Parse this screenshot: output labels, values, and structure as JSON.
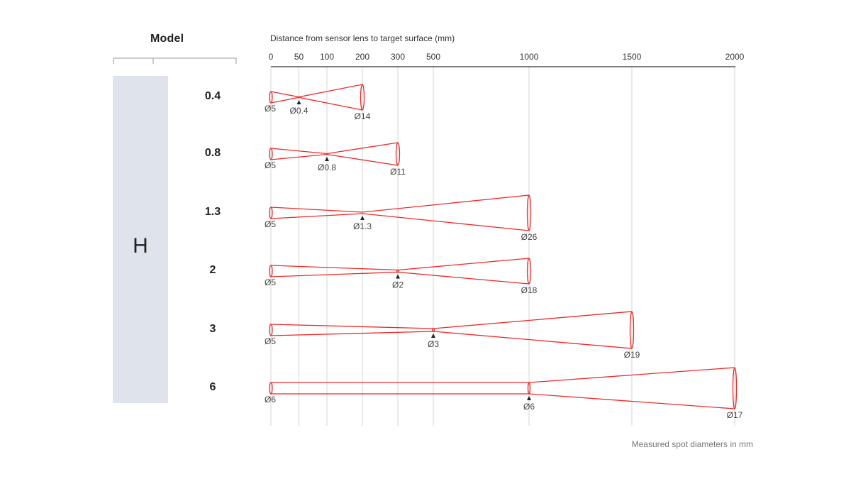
{
  "header": {
    "model_label": "Model"
  },
  "series": {
    "letter": "H",
    "color": "#dfe3eb"
  },
  "chart_data": {
    "type": "diagram",
    "title": "",
    "axis": {
      "label": "Distance from sensor lens to target surface (mm)",
      "ticks": [
        0,
        50,
        100,
        200,
        300,
        500,
        1000,
        1500,
        2000
      ],
      "grid": true
    },
    "beam_color": "#ee2a2a",
    "models": [
      {
        "name": "0.4",
        "start_diameter": "Ø5",
        "focus_distance": 50,
        "focus_diameter": "Ø0.4",
        "end_distance": 200,
        "end_diameter": "Ø14"
      },
      {
        "name": "0.8",
        "start_diameter": "Ø5",
        "focus_distance": 100,
        "focus_diameter": "Ø0.8",
        "end_distance": 300,
        "end_diameter": "Ø11"
      },
      {
        "name": "1.3",
        "start_diameter": "Ø5",
        "focus_distance": 200,
        "focus_diameter": "Ø1.3",
        "end_distance": 1000,
        "end_diameter": "Ø26"
      },
      {
        "name": "2",
        "start_diameter": "Ø5",
        "focus_distance": 300,
        "focus_diameter": "Ø2",
        "end_distance": 1000,
        "end_diameter": "Ø18"
      },
      {
        "name": "3",
        "start_diameter": "Ø5",
        "focus_distance": 500,
        "focus_diameter": "Ø3",
        "end_distance": 1500,
        "end_diameter": "Ø19"
      },
      {
        "name": "6",
        "start_diameter": "Ø6",
        "focus_distance": 1000,
        "focus_diameter": "Ø6",
        "end_distance": 2000,
        "end_diameter": "Ø17"
      }
    ],
    "footnote": "Measured spot diameters in mm"
  }
}
